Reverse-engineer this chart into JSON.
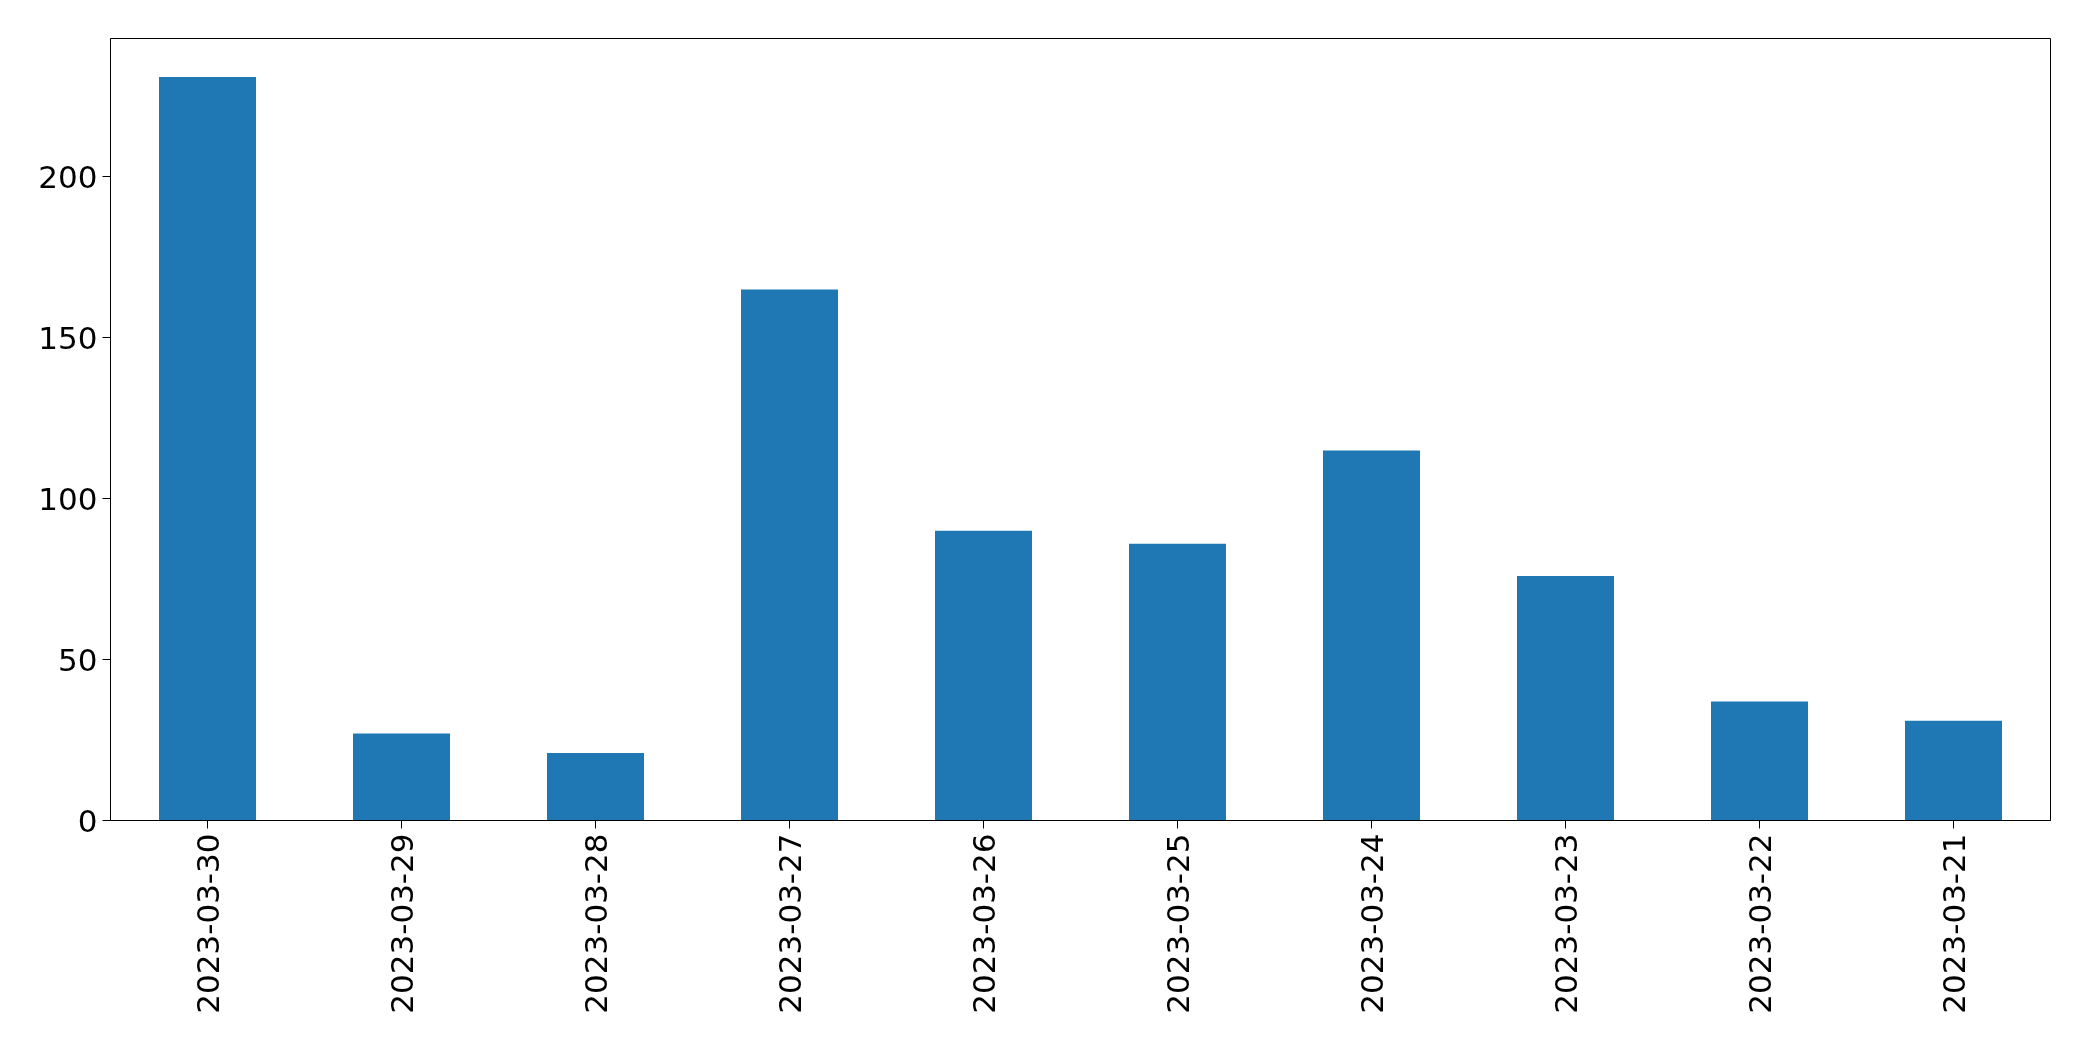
{
  "chart_data": {
    "type": "bar",
    "categories": [
      "2023-03-30",
      "2023-03-29",
      "2023-03-28",
      "2023-03-27",
      "2023-03-26",
      "2023-03-25",
      "2023-03-24",
      "2023-03-23",
      "2023-03-22",
      "2023-03-21"
    ],
    "values": [
      231,
      27,
      21,
      165,
      90,
      86,
      115,
      76,
      37,
      31
    ],
    "color": "#1f77b4",
    "ylim": [
      0,
      243
    ],
    "yticks": [
      0,
      50,
      100,
      150,
      200
    ],
    "grid": false
  }
}
